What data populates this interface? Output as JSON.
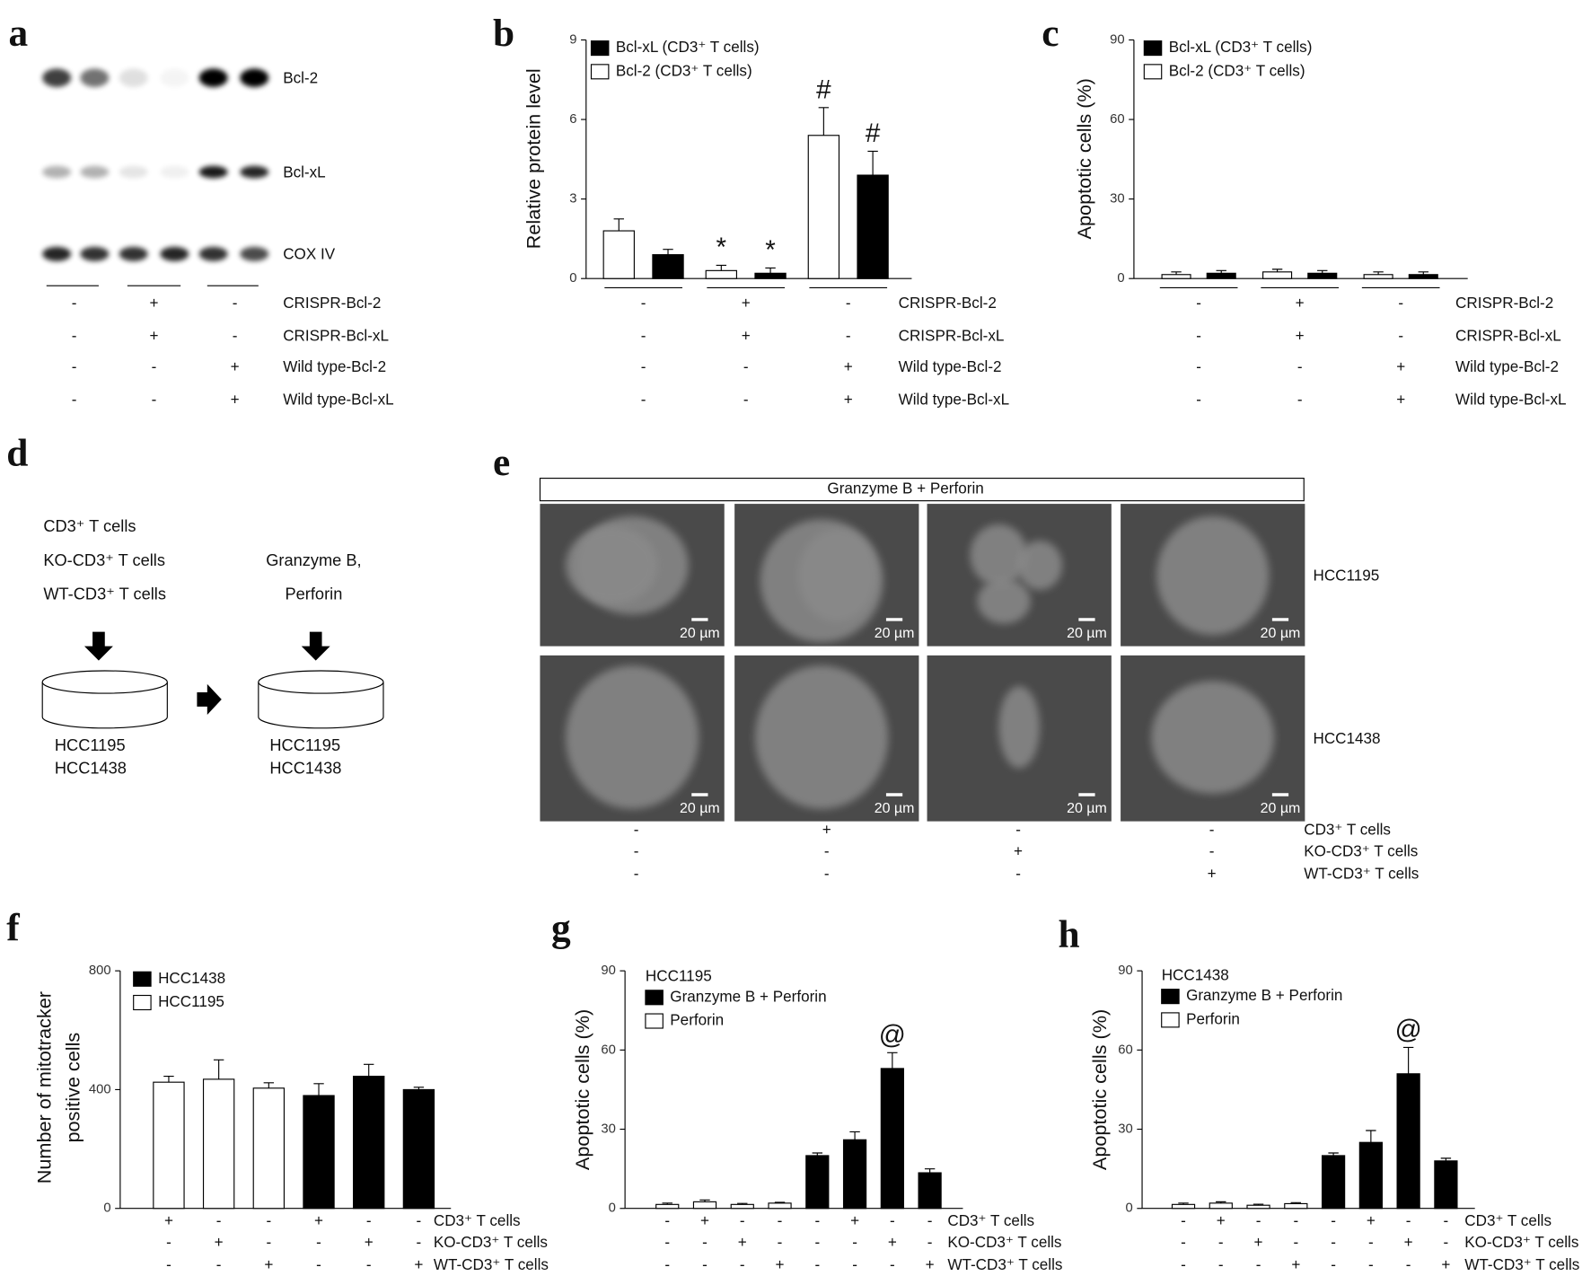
{
  "panel_labels": [
    "a",
    "b",
    "c",
    "d",
    "e",
    "f",
    "g",
    "h"
  ],
  "blot": {
    "bands": [
      "Bcl-2",
      "Bcl-xL",
      "COX IV"
    ],
    "conditions": [
      {
        "name": "CRISPR-Bcl-2",
        "values": [
          "-",
          "+",
          "-"
        ]
      },
      {
        "name": "CRISPR-Bcl-xL",
        "values": [
          "-",
          "+",
          "-"
        ]
      },
      {
        "name": "Wild type-Bcl-2",
        "values": [
          "-",
          "-",
          "+"
        ]
      },
      {
        "name": "Wild type-Bcl-xL",
        "values": [
          "-",
          "-",
          "+"
        ]
      }
    ]
  },
  "workflow": {
    "inputs": [
      "CD3⁺ T cells",
      "KO-CD3⁺ T cells",
      "WT-CD3⁺ T cells"
    ],
    "treatment": [
      "Granzyme B,",
      "Perforin"
    ],
    "cells_before": [
      "HCC1195",
      "HCC1438"
    ],
    "cells_after": [
      "HCC1195",
      "HCC1438"
    ]
  },
  "micrographs": {
    "header": "Granzyme B + Perforin",
    "rows": [
      "HCC1195",
      "HCC1438"
    ],
    "scale_bar": "20 µm",
    "conditions": [
      {
        "name": "CD3⁺ T cells",
        "values": [
          "-",
          "+",
          "-",
          "-"
        ]
      },
      {
        "name": "KO-CD3⁺ T cells",
        "values": [
          "-",
          "-",
          "+",
          "-"
        ]
      },
      {
        "name": "WT-CD3⁺ T cells",
        "values": [
          "-",
          "-",
          "-",
          "+"
        ]
      }
    ]
  },
  "chart_data": [
    {
      "type": "bar",
      "ylabel": "Relative protein level",
      "ylim": [
        0,
        9
      ],
      "yticks": [
        0,
        3,
        6,
        9
      ],
      "categories": [
        null,
        null,
        null
      ],
      "series": [
        {
          "name": "Bcl-xL (CD3⁺ T cells)",
          "color": "#000000",
          "values": [
            0.9,
            0.2,
            3.9
          ],
          "errors": [
            0.2,
            0.2,
            0.9
          ]
        },
        {
          "name": "Bcl-2 (CD3⁺ T cells)",
          "color": "#ffffff",
          "values": [
            1.8,
            0.3,
            5.4
          ],
          "errors": [
            0.45,
            0.2,
            1.05
          ]
        }
      ],
      "annotations": [
        {
          "text": "*",
          "category": 1,
          "series": 1
        },
        {
          "text": "*",
          "category": 1,
          "series": 0
        },
        {
          "text": "#",
          "category": 2,
          "series": 1
        },
        {
          "text": "#",
          "category": 2,
          "series": 0
        }
      ],
      "conditions": [
        {
          "name": "CRISPR-Bcl-2",
          "values": [
            "-",
            "+",
            "-"
          ]
        },
        {
          "name": "CRISPR-Bcl-xL",
          "values": [
            "-",
            "+",
            "-"
          ]
        },
        {
          "name": "Wild type-Bcl-2",
          "values": [
            "-",
            "-",
            "+"
          ]
        },
        {
          "name": "Wild type-Bcl-xL",
          "values": [
            "-",
            "-",
            "+"
          ]
        }
      ]
    },
    {
      "type": "bar",
      "ylabel": "Apoptotic cells (%)",
      "ylim": [
        0,
        90
      ],
      "yticks": [
        0,
        30,
        60,
        90
      ],
      "categories": [
        null,
        null,
        null
      ],
      "series": [
        {
          "name": "Bcl-xL (CD3⁺ T cells)",
          "color": "#000000",
          "values": [
            2,
            2,
            1.5
          ],
          "errors": [
            1,
            1,
            1
          ]
        },
        {
          "name": "Bcl-2 (CD3⁺ T cells)",
          "color": "#ffffff",
          "values": [
            1.5,
            2.5,
            1.5
          ],
          "errors": [
            1,
            1,
            1
          ]
        }
      ],
      "conditions": [
        {
          "name": "CRISPR-Bcl-2",
          "values": [
            "-",
            "+",
            "-"
          ]
        },
        {
          "name": "CRISPR-Bcl-xL",
          "values": [
            "-",
            "+",
            "-"
          ]
        },
        {
          "name": "Wild type-Bcl-2",
          "values": [
            "-",
            "-",
            "+"
          ]
        },
        {
          "name": "Wild type-Bcl-xL",
          "values": [
            "-",
            "-",
            "+"
          ]
        }
      ]
    },
    {
      "type": "bar",
      "ylabel": [
        "Number of mitotracker",
        "positive cells"
      ],
      "ylim": [
        0,
        800
      ],
      "yticks": [
        0,
        400,
        800
      ],
      "categories": [
        null,
        null,
        null,
        null,
        null,
        null
      ],
      "series": [
        {
          "name": "HCC1438",
          "color": "#000000",
          "values": [
            null,
            null,
            null,
            380,
            445,
            400
          ],
          "errors": [
            null,
            null,
            null,
            40,
            40,
            8
          ]
        },
        {
          "name": "HCC1195",
          "color": "#ffffff",
          "values": [
            425,
            435,
            405,
            null,
            null,
            null
          ],
          "errors": [
            20,
            65,
            18,
            null,
            null,
            null
          ]
        }
      ],
      "conditions": [
        {
          "name": "CD3⁺ T cells",
          "values": [
            "+",
            "-",
            "-",
            "+",
            "-",
            "-"
          ]
        },
        {
          "name": "KO-CD3⁺ T cells",
          "values": [
            "-",
            "+",
            "-",
            "-",
            "+",
            "-"
          ]
        },
        {
          "name": "WT-CD3⁺ T cells",
          "values": [
            "-",
            "-",
            "+",
            "-",
            "-",
            "+"
          ]
        }
      ]
    },
    {
      "type": "bar",
      "ylabel": "Apoptotic cells (%)",
      "ylim": [
        0,
        90
      ],
      "yticks": [
        0,
        30,
        60,
        90
      ],
      "legend_title": "HCC1195",
      "categories": [
        null,
        null,
        null,
        null,
        null,
        null,
        null,
        null
      ],
      "series": [
        {
          "name": "Granzyme B + Perforin",
          "color": "#000000",
          "values": [
            null,
            null,
            null,
            null,
            20,
            26,
            53,
            13.5
          ],
          "errors": [
            null,
            null,
            null,
            null,
            1,
            3,
            6,
            1.5
          ]
        },
        {
          "name": "Perforin",
          "color": "#ffffff",
          "values": [
            1.5,
            2.5,
            1.5,
            2,
            null,
            null,
            null,
            null
          ],
          "errors": [
            0.5,
            0.7,
            0.4,
            0.3,
            null,
            null,
            null,
            null
          ]
        }
      ],
      "annotations": [
        {
          "text": "@",
          "category": 6,
          "series": 0
        }
      ],
      "conditions": [
        {
          "name": "CD3⁺ T cells",
          "values": [
            "-",
            "+",
            "-",
            "-",
            "-",
            "+",
            "-",
            "-"
          ]
        },
        {
          "name": "KO-CD3⁺ T cells",
          "values": [
            "-",
            "-",
            "+",
            "-",
            "-",
            "-",
            "+",
            "-"
          ]
        },
        {
          "name": "WT-CD3⁺ T cells",
          "values": [
            "-",
            "-",
            "-",
            "+",
            "-",
            "-",
            "-",
            "+"
          ]
        }
      ]
    },
    {
      "type": "bar",
      "ylabel": "Apoptotic cells (%)",
      "ylim": [
        0,
        90
      ],
      "yticks": [
        0,
        30,
        60,
        90
      ],
      "legend_title": "HCC1438",
      "categories": [
        null,
        null,
        null,
        null,
        null,
        null,
        null,
        null
      ],
      "series": [
        {
          "name": "Granzyme B + Perforin",
          "color": "#000000",
          "values": [
            null,
            null,
            null,
            null,
            20,
            25,
            51,
            18
          ],
          "errors": [
            null,
            null,
            null,
            null,
            1,
            4.5,
            10,
            1
          ]
        },
        {
          "name": "Perforin",
          "color": "#ffffff",
          "values": [
            1.5,
            2,
            1.2,
            1.8,
            null,
            null,
            null,
            null
          ],
          "errors": [
            0.5,
            0.5,
            0.4,
            0.4,
            null,
            null,
            null,
            null
          ]
        }
      ],
      "annotations": [
        {
          "text": "@",
          "category": 6,
          "series": 0
        }
      ],
      "conditions": [
        {
          "name": "CD3⁺ T cells",
          "values": [
            "-",
            "+",
            "-",
            "-",
            "-",
            "+",
            "-",
            "-"
          ]
        },
        {
          "name": "KO-CD3⁺ T cells",
          "values": [
            "-",
            "-",
            "+",
            "-",
            "-",
            "-",
            "+",
            "-"
          ]
        },
        {
          "name": "WT-CD3⁺ T cells",
          "values": [
            "-",
            "-",
            "-",
            "+",
            "-",
            "-",
            "-",
            "+"
          ]
        }
      ]
    }
  ]
}
